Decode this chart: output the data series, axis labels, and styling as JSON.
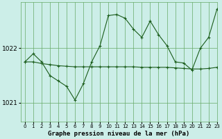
{
  "title": "Graphe pression niveau de la mer (hPa)",
  "background_color": "#cceee8",
  "grid_color": "#66aa66",
  "line_color": "#1a5c1a",
  "xlim": [
    -0.5,
    23
  ],
  "ylim": [
    1020.65,
    1022.85
  ],
  "yticks": [
    1021,
    1022
  ],
  "xticks": [
    0,
    1,
    2,
    3,
    4,
    5,
    6,
    7,
    8,
    9,
    10,
    11,
    12,
    13,
    14,
    15,
    16,
    17,
    18,
    19,
    20,
    21,
    22,
    23
  ],
  "line1_x": [
    0,
    1,
    2,
    3,
    4,
    5,
    6,
    7,
    8,
    9,
    10,
    11,
    12,
    13,
    14,
    15,
    16,
    17,
    18,
    19,
    20,
    21,
    22,
    23
  ],
  "line1_y": [
    1021.75,
    1021.75,
    1021.72,
    1021.7,
    1021.68,
    1021.67,
    1021.66,
    1021.66,
    1021.66,
    1021.66,
    1021.66,
    1021.66,
    1021.66,
    1021.66,
    1021.65,
    1021.65,
    1021.65,
    1021.65,
    1021.64,
    1021.63,
    1021.62,
    1021.62,
    1021.63,
    1021.65
  ],
  "line2_x": [
    0,
    1,
    2,
    3,
    4,
    5,
    6,
    7,
    8,
    9,
    10,
    11,
    12,
    13,
    14,
    15,
    16,
    17,
    18,
    19,
    20,
    21,
    22,
    23
  ],
  "line2_y": [
    1021.75,
    1021.9,
    1021.75,
    1021.5,
    1021.4,
    1021.3,
    1021.05,
    1021.35,
    1021.75,
    1022.05,
    1022.6,
    1022.62,
    1022.55,
    1022.35,
    1022.2,
    1022.5,
    1022.25,
    1022.05,
    1021.75,
    1021.73,
    1021.6,
    1022.0,
    1022.2,
    1022.72
  ]
}
